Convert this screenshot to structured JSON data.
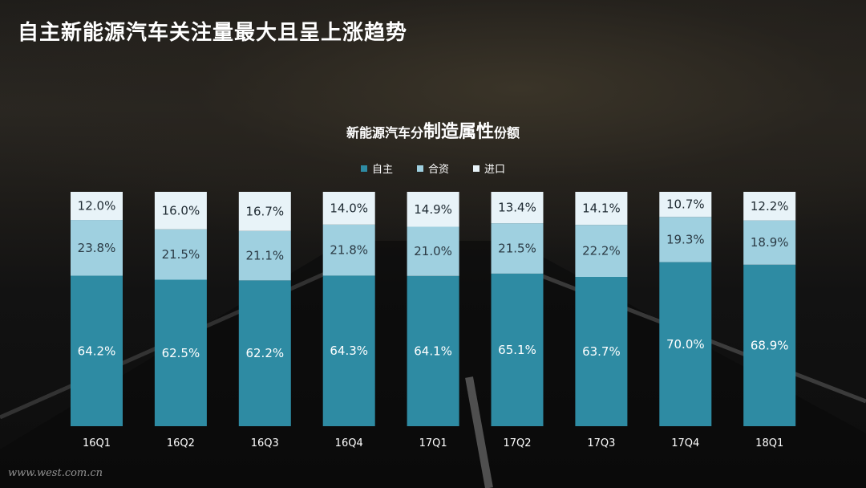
{
  "page": {
    "title": "自主新能源汽车关注量最大且呈上涨趋势",
    "watermark": "www.west.com.cn"
  },
  "chart_title": {
    "part1": "新能源汽车分",
    "part2": "制造属性",
    "part3": "份额"
  },
  "colors": {
    "自主": "#2e8ba3",
    "合资": "#9fd0e0",
    "进口": "#e8f3f8"
  },
  "chart_data": {
    "type": "bar",
    "stacked": true,
    "percent_stacked": true,
    "categories": [
      "16Q1",
      "16Q2",
      "16Q3",
      "16Q4",
      "17Q1",
      "17Q2",
      "17Q3",
      "17Q4",
      "18Q1"
    ],
    "series": [
      {
        "name": "自主",
        "values": [
          64.2,
          62.5,
          62.2,
          64.3,
          64.1,
          65.1,
          63.7,
          70.0,
          68.9
        ]
      },
      {
        "name": "合资",
        "values": [
          23.8,
          21.5,
          21.1,
          21.8,
          21.0,
          21.5,
          22.2,
          19.3,
          18.9
        ]
      },
      {
        "name": "进口",
        "values": [
          12.0,
          16.0,
          16.7,
          14.0,
          14.9,
          13.4,
          14.1,
          10.7,
          12.2
        ]
      }
    ],
    "data_labels": [
      [
        "64.2%",
        "62.5%",
        "62.2%",
        "64.3%",
        "64.1%",
        "65.1%",
        "63.7%",
        "70.0%",
        "68.9%"
      ],
      [
        "23.8%",
        "21.5%",
        "21.1%",
        "21.8%",
        "21.0%",
        "21.5%",
        "22.2%",
        "19.3%",
        "18.9%"
      ],
      [
        "12.0%",
        "16.0%",
        "16.7%",
        "14.0%",
        "14.9%",
        "13.4%",
        "14.1%",
        "10.7%",
        "12.2%"
      ]
    ],
    "ylim": [
      0,
      100
    ],
    "legend_position": "top-center",
    "grid": false
  }
}
